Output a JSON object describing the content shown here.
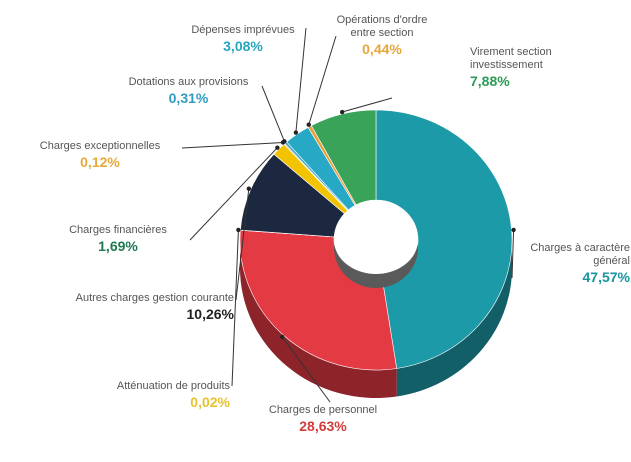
{
  "chart_data": {
    "type": "pie",
    "title": "",
    "categories": [
      "Charges à caractère général",
      "Charges de personnel",
      "Atténuation de produits",
      "Autres charges gestion courante",
      "Charges financières",
      "Charges exceptionnelles",
      "Dotations aux provisions",
      "Dépenses imprévues",
      "Opérations d'ordre entre section",
      "Virement section investissement"
    ],
    "values": [
      47.57,
      28.63,
      0.02,
      10.26,
      1.69,
      0.12,
      0.31,
      3.08,
      0.44,
      7.88
    ],
    "value_labels": [
      "47,57%",
      "28,63%",
      "0,02%",
      "10,26%",
      "1,69%",
      "0,12%",
      "0,31%",
      "3,08%",
      "0,44%",
      "7,88%"
    ],
    "colors": [
      "#1d9aa8",
      "#e33a44",
      "#f5c842",
      "#1c2740",
      "#f2c300",
      "#f0a030",
      "#3fa9c9",
      "#27a9c5",
      "#e9a13a",
      "#3aa35a"
    ],
    "label_colors": [
      "#17949e",
      "#d43a3a",
      "#e8c22b",
      "#222222",
      "#1f7a52",
      "#e8a93a",
      "#2f9bc2",
      "#24a7be",
      "#e5a63c",
      "#2d9a56"
    ],
    "style": "3D donut"
  }
}
